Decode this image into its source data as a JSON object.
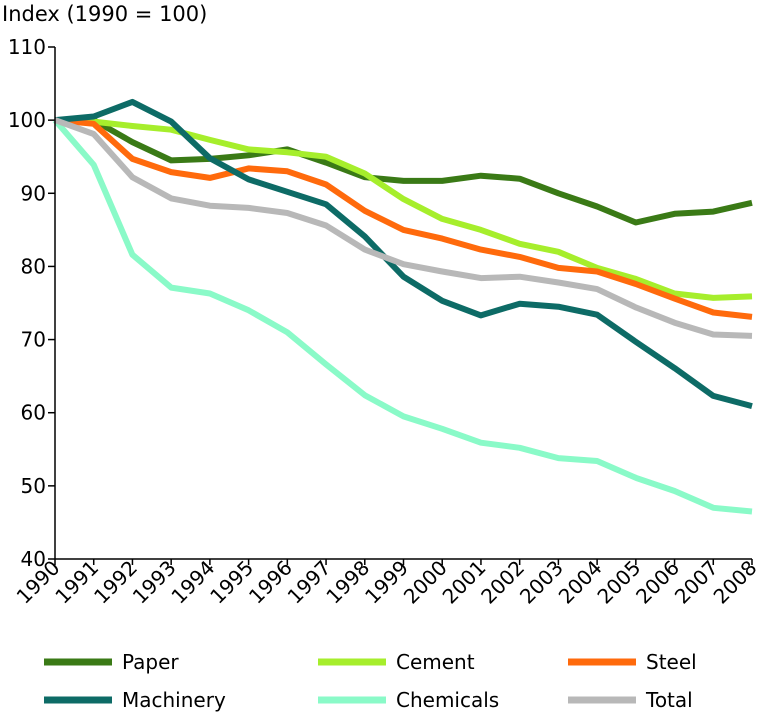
{
  "chart_data": {
    "type": "line",
    "title": "",
    "ylabel": "Index (1990 = 100)",
    "xlabel": "",
    "ylim": [
      40,
      110
    ],
    "yticks": [
      40,
      50,
      60,
      70,
      80,
      90,
      100,
      110
    ],
    "x": [
      "1990",
      "1991",
      "1992",
      "1993",
      "1994",
      "1995",
      "1996",
      "1997",
      "1998",
      "1999",
      "2000",
      "2001",
      "2002",
      "2003",
      "2004",
      "2005",
      "2006",
      "2007",
      "2008"
    ],
    "legend_position": "bottom",
    "series": [
      {
        "name": "Paper",
        "color": "#3a7a16",
        "values": [
          100,
          100,
          97,
          94.5,
          94.7,
          95.2,
          96,
          94.2,
          92.2,
          91.7,
          91.7,
          92.4,
          92,
          90,
          88.2,
          86,
          87.2,
          87.5,
          88.7
        ]
      },
      {
        "name": "Cement",
        "color": "#a6ee2c",
        "values": [
          100,
          99.8,
          99.2,
          98.7,
          97.3,
          96,
          95.6,
          95,
          92.7,
          89.2,
          86.5,
          85,
          83.1,
          82,
          79.8,
          78.3,
          76.3,
          75.7,
          75.9
        ]
      },
      {
        "name": "Steel",
        "color": "#ff6a0c",
        "values": [
          100,
          99.5,
          94.7,
          92.9,
          92.1,
          93.4,
          93,
          91.2,
          87.6,
          85,
          83.8,
          82.3,
          81.3,
          79.8,
          79.3,
          77.6,
          75.6,
          73.7,
          73.1
        ]
      },
      {
        "name": "Machinery",
        "color": "#0d6b66",
        "values": [
          100,
          100.5,
          102.5,
          99.8,
          94.8,
          91.9,
          90.2,
          88.5,
          84.1,
          78.6,
          75.3,
          73.3,
          74.9,
          74.5,
          73.4,
          69.7,
          66.1,
          62.3,
          60.9
        ]
      },
      {
        "name": "Chemicals",
        "color": "#8afac8",
        "values": [
          100,
          93.9,
          81.6,
          77.1,
          76.3,
          74,
          71,
          66.6,
          62.4,
          59.5,
          57.8,
          55.9,
          55.2,
          53.8,
          53.4,
          51.1,
          49.3,
          47,
          46.5
        ]
      },
      {
        "name": "Total",
        "color": "#b8b8b8",
        "values": [
          100,
          98.1,
          92.2,
          89.3,
          88.3,
          88,
          87.3,
          85.6,
          82.3,
          80.3,
          79.3,
          78.4,
          78.6,
          77.8,
          76.9,
          74.4,
          72.3,
          70.7,
          70.5
        ]
      }
    ]
  }
}
